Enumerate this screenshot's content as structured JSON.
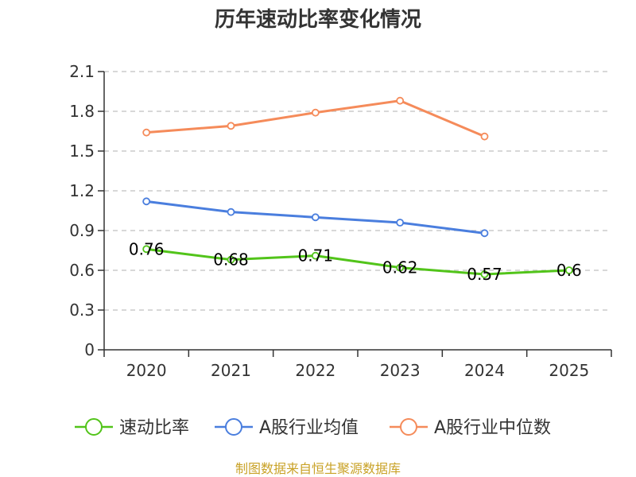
{
  "chart_data": {
    "type": "line",
    "title": "历年速动比率变化情况",
    "categories": [
      "2020",
      "2021",
      "2022",
      "2023",
      "2024",
      "2025"
    ],
    "y_ticks": [
      "0",
      "0.3",
      "0.6",
      "0.9",
      "1.2",
      "1.5",
      "1.8",
      "2.1"
    ],
    "ylim": [
      0,
      2.1
    ],
    "grid": true,
    "legend_position": "bottom",
    "series": [
      {
        "name": "速动比率",
        "color": "#52c41a",
        "values": [
          0.76,
          0.68,
          0.71,
          0.62,
          0.57,
          0.6
        ],
        "labels": [
          "0.76",
          "0.68",
          "0.71",
          "0.62",
          "0.57",
          "0.6"
        ],
        "show_labels": true
      },
      {
        "name": "A股行业均值",
        "color": "#4a7ede",
        "values": [
          1.12,
          1.04,
          1.0,
          0.96,
          0.88,
          null
        ],
        "show_labels": false
      },
      {
        "name": "A股行业中位数",
        "color": "#f58b5a",
        "values": [
          1.64,
          1.69,
          1.79,
          1.88,
          1.61,
          null
        ],
        "show_labels": false
      }
    ],
    "source": "制图数据来自恒生聚源数据库"
  }
}
